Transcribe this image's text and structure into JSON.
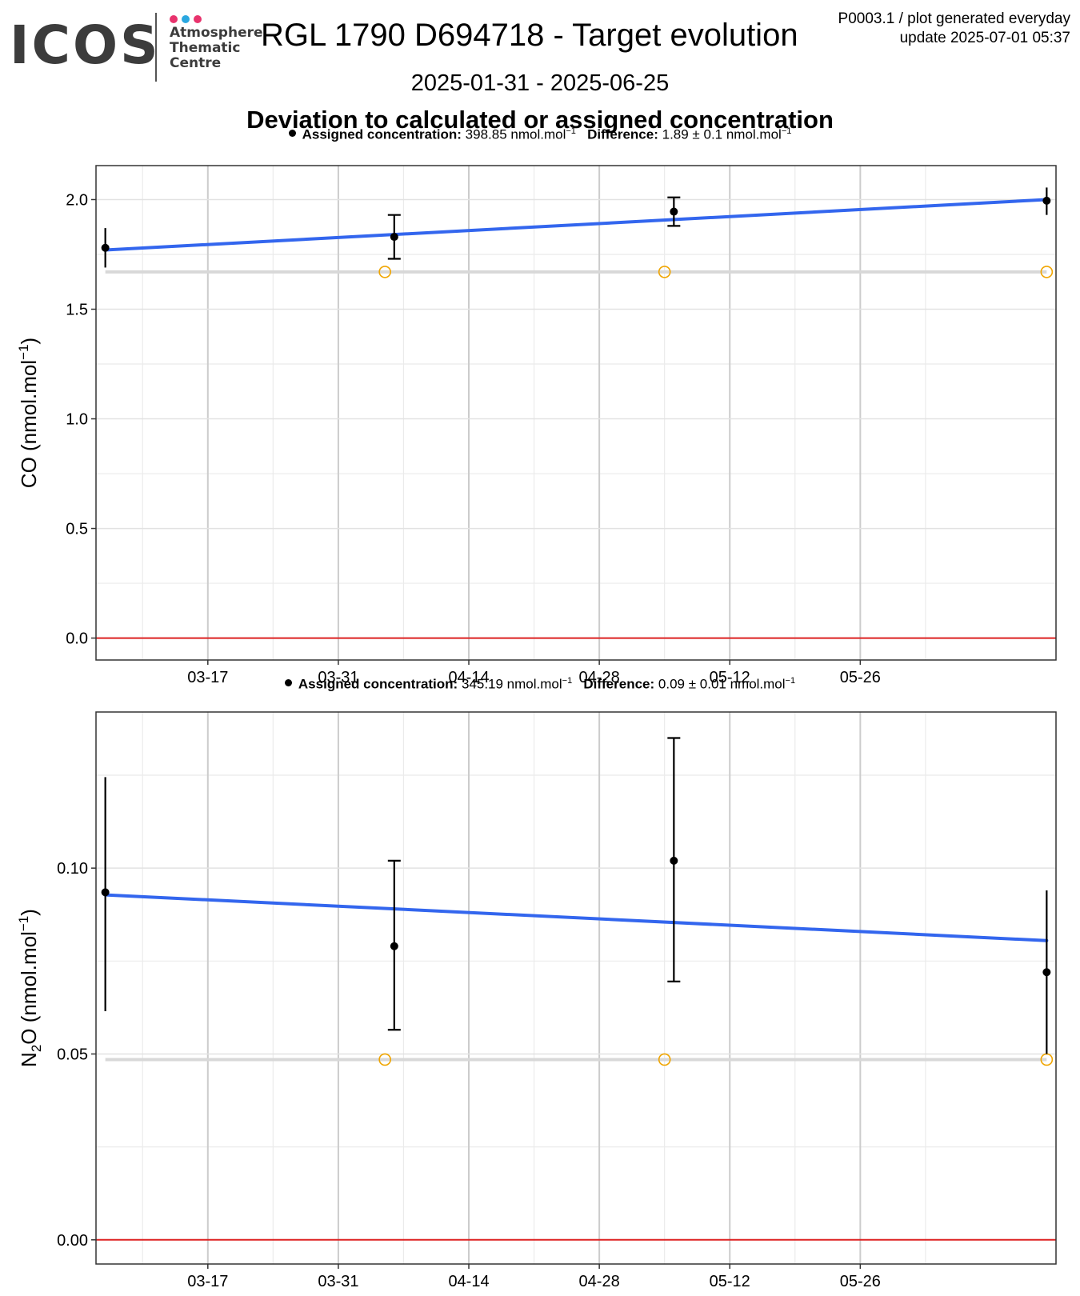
{
  "header": {
    "logo_text": "ICOS",
    "logo_subtitle": [
      "Atmosphere",
      "Thematic",
      "Centre"
    ],
    "title": "RGL 1790 D694718 - Target evolution",
    "date_range": "2025-01-31 - 2025-06-25",
    "subtitle": "Deviation to calculated or assigned concentration",
    "meta_line1": "P0003.1 / plot generated everyday",
    "meta_line2": "update  2025-07-01 05:37"
  },
  "colors": {
    "fit_line": "#3366ee",
    "zero_line": "#dd2222",
    "assigned_marker": "#f0a500",
    "reference_band": "#d8d8d8",
    "points": "#000000",
    "logo_dots": [
      "#e8336d",
      "#2aa7e0",
      "#e8336d"
    ]
  },
  "chart_data": [
    {
      "type": "scatter",
      "caption": {
        "assigned_label": "Assigned concentration:",
        "assigned_value": "398.85 nmol.mol",
        "difference_label": "Difference:",
        "difference_value": "1.89 ± 0.1 nmol.mol",
        "unit_exponent": "−1"
      },
      "ylabel_main": "CO (nmol.mol",
      "ylabel_sub": "",
      "ylabel_tail": ")",
      "ylabel_exponent": "−1",
      "x_ticks": [
        "2025-03-17",
        "2025-03-31",
        "2025-04-14",
        "2025-04-28",
        "2025-05-12",
        "2025-05-26"
      ],
      "x_tick_labels": [
        "03-17",
        "03-31",
        "04-14",
        "04-28",
        "05-12",
        "05-26"
      ],
      "xlim": [
        "2025-03-05",
        "2025-06-16"
      ],
      "ylim": [
        -0.1,
        2.155
      ],
      "y_ticks": [
        0.0,
        0.5,
        1.0,
        1.5,
        2.0
      ],
      "y_tick_labels": [
        "0.0",
        "0.5",
        "1.0",
        "1.5",
        "2.0"
      ],
      "points": [
        {
          "x": "2025-03-06",
          "y": 1.78,
          "err_low": 1.69,
          "err_high": 1.87
        },
        {
          "x": "2025-04-06",
          "y": 1.83,
          "err_low": 1.73,
          "err_high": 1.93
        },
        {
          "x": "2025-05-06",
          "y": 1.945,
          "err_low": 1.88,
          "err_high": 2.01
        },
        {
          "x": "2025-06-15",
          "y": 1.995,
          "err_low": 1.93,
          "err_high": 2.055
        }
      ],
      "assigned_markers": [
        {
          "x": "2025-04-05",
          "y": 1.67
        },
        {
          "x": "2025-05-05",
          "y": 1.67
        },
        {
          "x": "2025-06-15",
          "y": 1.67
        }
      ],
      "reference_level": 1.67,
      "fit": {
        "x": [
          "2025-03-06",
          "2025-06-15"
        ],
        "y": [
          1.77,
          2.0
        ]
      }
    },
    {
      "type": "scatter",
      "caption": {
        "assigned_label": "Assigned concentration:",
        "assigned_value": "345.19 nmol.mol",
        "difference_label": "Difference:",
        "difference_value": "0.09 ± 0.01 nmol.mol",
        "unit_exponent": "−1"
      },
      "ylabel_main": "N",
      "ylabel_sub": "2",
      "ylabel_tail": "O (nmol.mol",
      "ylabel_exponent": "−1",
      "ylabel_close": ")",
      "x_ticks": [
        "2025-03-17",
        "2025-03-31",
        "2025-04-14",
        "2025-04-28",
        "2025-05-12",
        "2025-05-26"
      ],
      "x_tick_labels": [
        "03-17",
        "03-31",
        "04-14",
        "04-28",
        "05-12",
        "05-26"
      ],
      "xlim": [
        "2025-03-05",
        "2025-06-16"
      ],
      "ylim": [
        -0.0065,
        0.142
      ],
      "y_ticks": [
        0.0,
        0.05,
        0.1
      ],
      "y_tick_labels": [
        "0.00",
        "0.05",
        "0.10"
      ],
      "points": [
        {
          "x": "2025-03-06",
          "y": 0.0935,
          "err_low": 0.0615,
          "err_high": 0.1245
        },
        {
          "x": "2025-04-06",
          "y": 0.079,
          "err_low": 0.0565,
          "err_high": 0.102
        },
        {
          "x": "2025-05-06",
          "y": 0.102,
          "err_low": 0.0695,
          "err_high": 0.135
        },
        {
          "x": "2025-06-15",
          "y": 0.072,
          "err_low": 0.05,
          "err_high": 0.094
        }
      ],
      "assigned_markers": [
        {
          "x": "2025-04-05",
          "y": 0.0485
        },
        {
          "x": "2025-05-05",
          "y": 0.0485
        },
        {
          "x": "2025-06-15",
          "y": 0.0485
        }
      ],
      "reference_level": 0.0485,
      "fit": {
        "x": [
          "2025-03-06",
          "2025-06-15"
        ],
        "y": [
          0.0928,
          0.0805
        ]
      }
    }
  ]
}
